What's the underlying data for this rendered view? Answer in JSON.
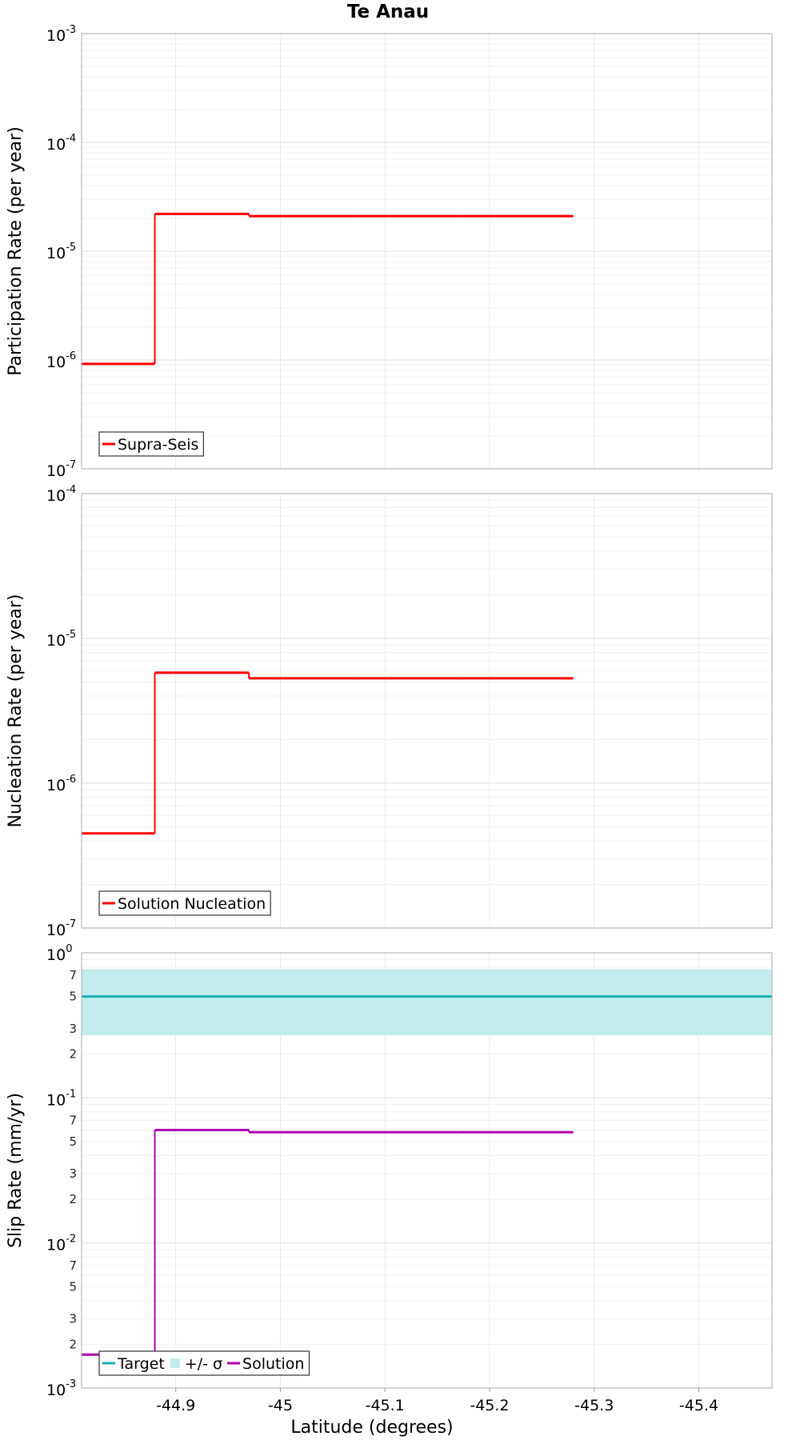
{
  "chart_data": [
    {
      "type": "line",
      "title": "Te Anau",
      "ylabel": "Participation Rate (per year)",
      "xlabel": "",
      "yscale": "log",
      "ylim": [
        1e-07,
        0.001
      ],
      "xlim": [
        -44.81,
        -45.47
      ],
      "series": [
        {
          "name": "Supra-Seis",
          "color": "#ff0000",
          "style": "step",
          "segments": [
            {
              "x": [
                -44.81,
                -44.88
              ],
              "y": 9.2e-07
            },
            {
              "x": [
                -44.88,
                -44.97
              ],
              "y": 2.2e-05
            },
            {
              "x": [
                -44.97,
                -45.07
              ],
              "y": 2.1e-05
            },
            {
              "x": [
                -45.07,
                -45.17
              ],
              "y": 2.1e-05
            },
            {
              "x": [
                -45.17,
                -45.28
              ],
              "y": 2.1e-05
            }
          ]
        }
      ],
      "legend": [
        {
          "label": "Supra-Seis",
          "color": "#ff0000",
          "kind": "line"
        }
      ],
      "legend_position": "bottom-left"
    },
    {
      "type": "line",
      "title": "",
      "ylabel": "Nucleation Rate (per year)",
      "xlabel": "",
      "yscale": "log",
      "ylim": [
        1e-07,
        0.0001
      ],
      "xlim": [
        -44.81,
        -45.47
      ],
      "series": [
        {
          "name": "Solution Nucleation",
          "color": "#ff0000",
          "style": "step",
          "segments": [
            {
              "x": [
                -44.81,
                -44.88
              ],
              "y": 4.5e-07
            },
            {
              "x": [
                -44.88,
                -44.97
              ],
              "y": 5.8e-06
            },
            {
              "x": [
                -44.97,
                -45.07
              ],
              "y": 5.3e-06
            },
            {
              "x": [
                -45.07,
                -45.17
              ],
              "y": 5.3e-06
            },
            {
              "x": [
                -45.17,
                -45.28
              ],
              "y": 5.3e-06
            }
          ]
        }
      ],
      "legend": [
        {
          "label": "Solution Nucleation",
          "color": "#ff0000",
          "kind": "line"
        }
      ],
      "legend_position": "bottom-left"
    },
    {
      "type": "line",
      "title": "",
      "ylabel": "Slip Rate (mm/yr)",
      "xlabel": "Latitude (degrees)",
      "yscale": "log",
      "ylim": [
        0.001,
        1
      ],
      "xlim": [
        -44.81,
        -45.47
      ],
      "series": [
        {
          "name": "Target",
          "color": "#1aafaf",
          "style": "step",
          "segments": [
            {
              "x": [
                -44.81,
                -45.47
              ],
              "y": 0.5
            }
          ]
        },
        {
          "name": "+/- σ",
          "color": "#c2ecec",
          "style": "band",
          "band": {
            "x": [
              -44.81,
              -45.47
            ],
            "low": 0.27,
            "high": 0.77
          }
        },
        {
          "name": "Solution",
          "color": "#b000b0",
          "style": "step",
          "segments": [
            {
              "x": [
                -44.81,
                -44.88
              ],
              "y": 0.0017
            },
            {
              "x": [
                -44.88,
                -44.97
              ],
              "y": 0.06
            },
            {
              "x": [
                -44.97,
                -45.07
              ],
              "y": 0.058
            },
            {
              "x": [
                -45.07,
                -45.17
              ],
              "y": 0.058
            },
            {
              "x": [
                -45.17,
                -45.28
              ],
              "y": 0.058
            }
          ]
        }
      ],
      "legend": [
        {
          "label": "Target",
          "color": "#1aafaf",
          "kind": "line"
        },
        {
          "label": "+/- σ",
          "color": "#c2ecec",
          "kind": "box"
        },
        {
          "label": "Solution",
          "color": "#b000b0",
          "kind": "line"
        }
      ],
      "legend_position": "bottom-left"
    }
  ],
  "x_ticks": [
    {
      "value": -44.9,
      "label": "-44.9"
    },
    {
      "value": -45.0,
      "label": "-45"
    },
    {
      "value": -45.1,
      "label": "-45.1"
    },
    {
      "value": -45.2,
      "label": "-45.2"
    },
    {
      "value": -45.3,
      "label": "-45.3"
    },
    {
      "value": -45.4,
      "label": "-45.4"
    }
  ],
  "y_ticks": [
    [
      {
        "value": 0.001,
        "base": "10",
        "exp": "-3"
      },
      {
        "value": 0.0001,
        "base": "10",
        "exp": "-4"
      },
      {
        "value": 1e-05,
        "base": "10",
        "exp": "-5"
      },
      {
        "value": 1e-06,
        "base": "10",
        "exp": "-6"
      },
      {
        "value": 1e-07,
        "base": "10",
        "exp": "-7"
      }
    ],
    [
      {
        "value": 0.0001,
        "base": "10",
        "exp": "-4"
      },
      {
        "value": 1e-05,
        "base": "10",
        "exp": "-5"
      },
      {
        "value": 1e-06,
        "base": "10",
        "exp": "-6"
      },
      {
        "value": 1e-07,
        "base": "10",
        "exp": "-7"
      }
    ],
    [
      {
        "value": 1,
        "base": "10",
        "exp": "0"
      },
      {
        "value": 0.1,
        "base": "10",
        "exp": "-1"
      },
      {
        "value": 0.01,
        "base": "10",
        "exp": "-2"
      },
      {
        "value": 0.001,
        "base": "10",
        "exp": "-3"
      }
    ]
  ],
  "y_minor_labels": [
    {
      "value": 0.7,
      "label": "7"
    },
    {
      "value": 0.5,
      "label": "5"
    },
    {
      "value": 0.3,
      "label": "3"
    },
    {
      "value": 0.2,
      "label": "2"
    },
    {
      "value": 0.07,
      "label": "7"
    },
    {
      "value": 0.05,
      "label": "5"
    },
    {
      "value": 0.03,
      "label": "3"
    },
    {
      "value": 0.02,
      "label": "2"
    },
    {
      "value": 0.007,
      "label": "7"
    },
    {
      "value": 0.005,
      "label": "5"
    },
    {
      "value": 0.003,
      "label": "3"
    },
    {
      "value": 0.002,
      "label": "2"
    }
  ]
}
